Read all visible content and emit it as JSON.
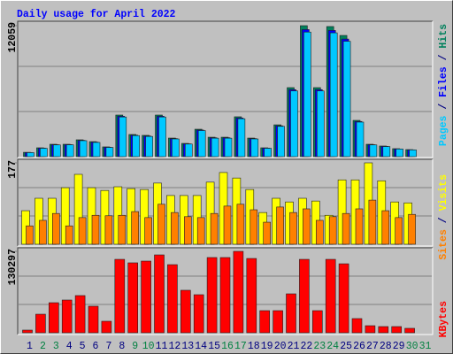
{
  "title": "Daily usage for April 2022",
  "label_separator": " / ",
  "chart_data": [
    {
      "type": "bar",
      "ylim": [
        0,
        12059
      ],
      "yticks": [
        12059
      ],
      "series": [
        {
          "name": "Hits",
          "color": "#00805c",
          "values": [
            400,
            815,
            1140,
            1140,
            1550,
            1385,
            900,
            3830,
            2040,
            1960,
            3830,
            1710,
            1220,
            2525,
            1790,
            1790,
            3670,
            1710,
            815,
            2930,
            6355,
            12059,
            6355,
            11980,
            11160,
            3340,
            1140,
            980,
            735,
            650,
            0
          ]
        },
        {
          "name": "Files",
          "color": "#0000ff",
          "values": [
            380,
            790,
            1100,
            1110,
            1500,
            1340,
            870,
            3720,
            1980,
            1900,
            3720,
            1660,
            1180,
            2450,
            1740,
            1740,
            3560,
            1660,
            790,
            2840,
            6170,
            11700,
            6170,
            11620,
            10830,
            3240,
            1100,
            950,
            710,
            630,
            0
          ]
        },
        {
          "name": "Pages",
          "color": "#00c8ff",
          "values": [
            370,
            770,
            1080,
            1090,
            1470,
            1310,
            850,
            3650,
            1940,
            1860,
            3650,
            1630,
            1160,
            2400,
            1700,
            1700,
            3490,
            1630,
            770,
            2790,
            6050,
            11470,
            6050,
            11400,
            10620,
            3180,
            1080,
            930,
            700,
            620,
            0
          ]
        }
      ]
    },
    {
      "type": "bar",
      "ylim": [
        0,
        177
      ],
      "yticks": [
        177
      ],
      "series": [
        {
          "name": "Visits",
          "color": "#ffff00",
          "values": [
            73,
            100,
            100,
            123,
            152,
            123,
            117,
            125,
            121,
            119,
            133,
            106,
            106,
            106,
            135,
            156,
            144,
            119,
            69,
            100,
            92,
            100,
            94,
            63,
            140,
            140,
            177,
            138,
            92,
            90,
            0
          ]
        },
        {
          "name": "Sites",
          "color": "#ff8000",
          "values": [
            40,
            52,
            67,
            40,
            58,
            63,
            62,
            63,
            71,
            58,
            87,
            69,
            60,
            58,
            67,
            83,
            87,
            75,
            48,
            81,
            69,
            77,
            52,
            60,
            67,
            77,
            96,
            73,
            58,
            65,
            0
          ]
        }
      ]
    },
    {
      "type": "bar",
      "ylim": [
        0,
        130297
      ],
      "yticks": [
        130297
      ],
      "categories": [
        "1",
        "2",
        "3",
        "4",
        "5",
        "6",
        "7",
        "8",
        "9",
        "10",
        "11",
        "12",
        "13",
        "14",
        "15",
        "16",
        "17",
        "18",
        "19",
        "20",
        "21",
        "22",
        "23",
        "24",
        "25",
        "26",
        "27",
        "28",
        "29",
        "30",
        "31"
      ],
      "category_colors": [
        "#000080",
        "#008040",
        "#008040",
        "#000080",
        "#000080",
        "#000080",
        "#000080",
        "#000080",
        "#008040",
        "#008040",
        "#000080",
        "#000080",
        "#000080",
        "#000080",
        "#000080",
        "#008040",
        "#008040",
        "#000080",
        "#000080",
        "#000080",
        "#000080",
        "#000080",
        "#008040",
        "#008040",
        "#000080",
        "#000080",
        "#000080",
        "#000080",
        "#000080",
        "#008040",
        "#008040"
      ],
      "series": [
        {
          "name": "KBytes",
          "color": "#ff0000",
          "values": [
            4250,
            29700,
            48100,
            52400,
            59500,
            42500,
            18400,
            117500,
            111900,
            114700,
            124600,
            109000,
            68000,
            60900,
            120400,
            120400,
            130297,
            118900,
            35400,
            35400,
            62300,
            117500,
            35400,
            117500,
            110400,
            22700,
            11300,
            9900,
            9900,
            7100,
            0
          ]
        }
      ]
    }
  ]
}
